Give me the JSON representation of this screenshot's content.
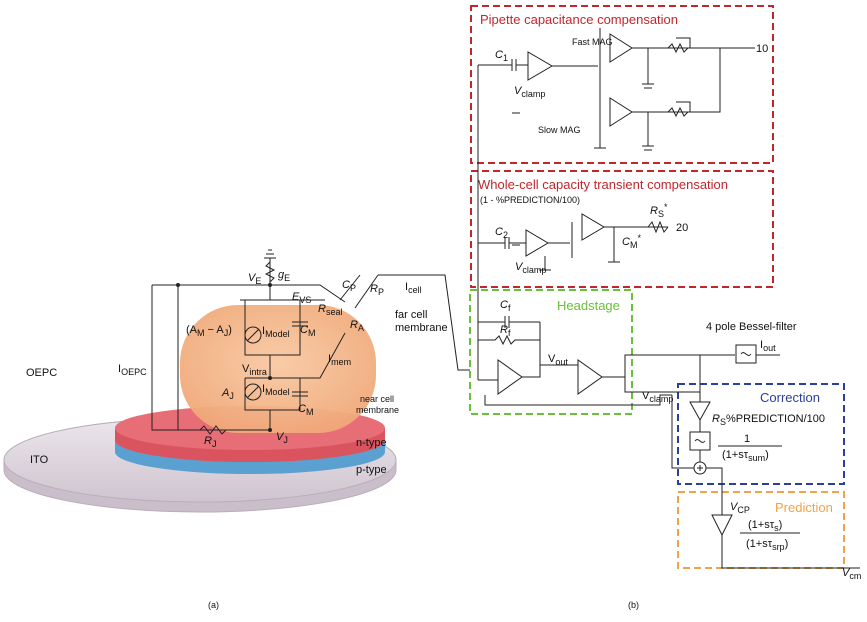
{
  "left": {
    "oepc": "OEPC",
    "ito": "ITO",
    "n_type": "n-type",
    "p_type": "p-type",
    "near_membrane_1": "near cell",
    "near_membrane_2": "membrane",
    "far_membrane_1": "far cell",
    "far_membrane_2": "membrane",
    "i_oepc": "I",
    "i_oepc_sub": "OEPC",
    "i_cell": "I",
    "i_cell_sub": "cell",
    "i_mem": "I",
    "i_mem_sub": "mem",
    "v_e": "V",
    "v_e_sub": "E",
    "g_e": "g",
    "g_e_sub": "E",
    "e_vs": "E",
    "e_vs_sub": "VS",
    "r_seal": "R",
    "r_seal_sub": "seal",
    "c_p": "C",
    "c_p_sub": "P",
    "r_p": "R",
    "r_p_sub": "P",
    "r_a": "R",
    "r_a_sub": "A",
    "am_aj": "(A",
    "am_aj_mid": "M",
    "am_aj_rest": " − A",
    "am_aj_end": "J",
    "am_aj_close": ")",
    "i_model_1": "I",
    "i_model_1_sub": "Model",
    "c_m_1": "C",
    "c_m_1_sub": "M",
    "v_intra": "V",
    "v_intra_sub": "intra",
    "a_j": "A",
    "a_j_sub": "J",
    "i_model_2": "I",
    "i_model_2_sub": "Model",
    "c_m_2": "C",
    "c_m_2_sub": "M",
    "r_j": "R",
    "r_j_sub": "J",
    "v_j": "V",
    "v_j_sub": "J",
    "caption": "(a)"
  },
  "right": {
    "pipette_title": "Pipette capacitance compensation",
    "c1": "C",
    "c1_sub": "1",
    "vclamp_1": "V",
    "vclamp_1_sub": "clamp",
    "fast_mag": "Fast MAG",
    "slow_mag": "Slow MAG",
    "out_10": "10",
    "wholecell_title": "Whole-cell capacity transient compensation",
    "prediction_factor": "(1 - %PREDICTION/100)",
    "c2": "C",
    "c2_sub": "2",
    "vclamp_2": "V",
    "vclamp_2_sub": "clamp",
    "rs_star": "R",
    "rs_star_sub": "S",
    "rs_star_sup": "*",
    "cm_star": "C",
    "cm_star_sub": "M",
    "cm_star_sup": "*",
    "out_20": "20",
    "headstage_title": "Headstage",
    "cf": "C",
    "cf_sub": "f",
    "rf": "R",
    "rf_sub": "f",
    "vout": "V",
    "vout_sub": "out",
    "bessel": "4 pole Bessel-filter",
    "iout": "I",
    "iout_sub": "out",
    "vclamp_3": "V",
    "vclamp_3_sub": "clamp",
    "correction_title": "Correction",
    "rs_pred": "R",
    "rs_pred_sub": "S",
    "rs_pred_rest": "%PREDICTION/100",
    "corr_num": "1",
    "corr_den": "(1+sτ",
    "corr_den_sub": "sum",
    "corr_den_close": ")",
    "prediction_title": "Prediction",
    "vcp": "V",
    "vcp_sub": "CP",
    "pred_num": "(1+sτ",
    "pred_num_sub": "s",
    "pred_num_close": ")",
    "pred_den": "(1+sτ",
    "pred_den_sub": "srp",
    "pred_den_close": ")",
    "vcm": "V",
    "vcm_sub": "cm",
    "caption": "(b)"
  },
  "colors": {
    "pipette_box": "#c0272d",
    "headstage_box": "#6cbf3a",
    "correction_box": "#2a3f9e",
    "prediction_box": "#f0a34a",
    "cell": "#f5b98c",
    "n_type": "#e0606a",
    "p_type": "#5aa0d0",
    "ito": "#ddd3dd"
  }
}
